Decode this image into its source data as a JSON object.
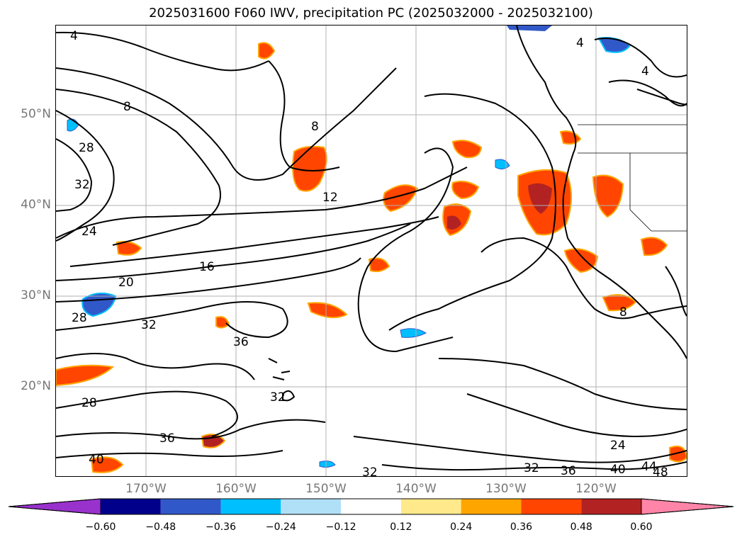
{
  "title": "2025031600 F060 IWV, precipitation PC (2025032000 - 2025032100)",
  "lat_labels": [
    "50°N",
    "40°N",
    "30°N",
    "20°N"
  ],
  "lon_labels": [
    "170°W",
    "160°W",
    "150°W",
    "140°W",
    "130°W",
    "120°W"
  ],
  "contour_labels": [
    "4",
    "8",
    "12",
    "16",
    "20",
    "24",
    "28",
    "32",
    "36",
    "40",
    "44",
    "48"
  ],
  "colorbar": {
    "ticks": [
      "−0.60",
      "−0.48",
      "−0.36",
      "−0.24",
      "−0.12",
      "0.12",
      "0.24",
      "0.36",
      "0.48",
      "0.60"
    ],
    "colors": [
      "#9932cc",
      "#00008b",
      "#3158c8",
      "#00bfff",
      "#b0e0f8",
      "#ffffff",
      "#ffe98a",
      "#ffa500",
      "#ff4500",
      "#b22222",
      "#ff85a8"
    ]
  }
}
